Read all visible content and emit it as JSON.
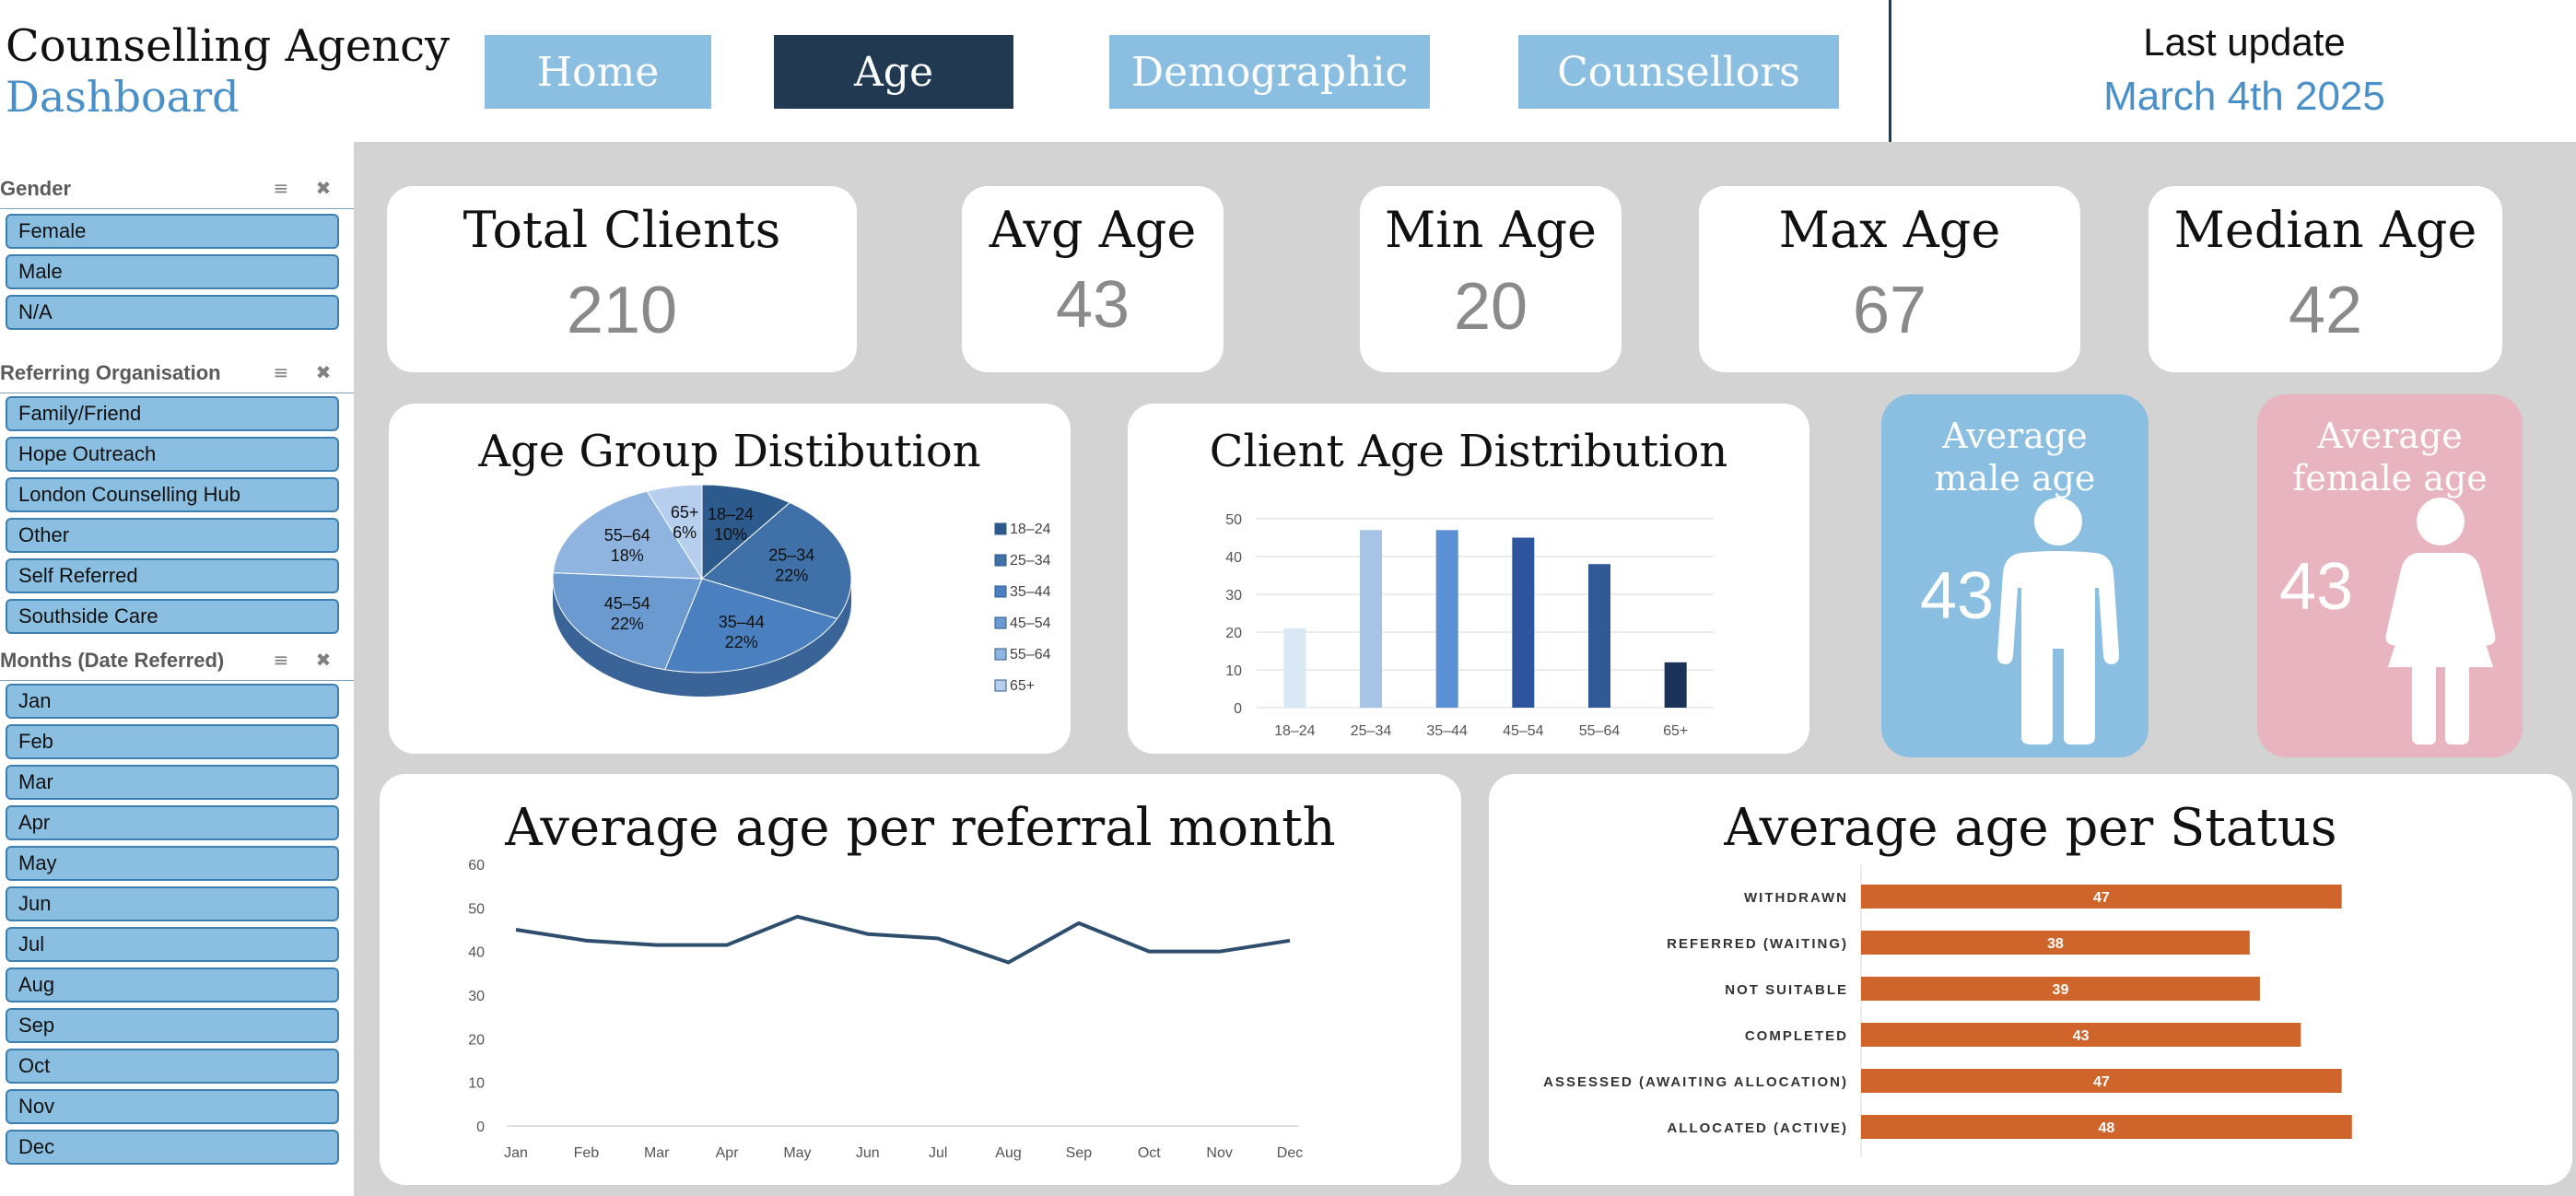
{
  "header": {
    "title_line1": "Counselling Agency",
    "title_line2": "Dashboard",
    "nav": [
      {
        "label": "Home",
        "active": false
      },
      {
        "label": "Age",
        "active": true
      },
      {
        "label": "Demographic",
        "active": false
      },
      {
        "label": "Counsellors",
        "active": false
      }
    ],
    "last_update_label": "Last update",
    "last_update_date": "March 4th 2025"
  },
  "slicers": {
    "gender": {
      "title": "Gender",
      "items": [
        "Female",
        "Male",
        "N/A"
      ]
    },
    "referring_organisation": {
      "title": "Referring Organisation",
      "items": [
        "Family/Friend",
        "Hope Outreach",
        "London Counselling Hub",
        "Other",
        "Self Referred",
        "Southside Care"
      ]
    },
    "months": {
      "title": "Months (Date Referred)",
      "items": [
        "Jan",
        "Feb",
        "Mar",
        "Apr",
        "May",
        "Jun",
        "Jul",
        "Aug",
        "Sep",
        "Oct",
        "Nov",
        "Dec"
      ]
    },
    "icons": {
      "multiselect": "multi-select-icon",
      "clear": "clear-filter-icon"
    }
  },
  "kpis": {
    "total_clients": {
      "label": "Total Clients",
      "value": "210"
    },
    "avg_age": {
      "label": "Avg Age",
      "value": "43"
    },
    "min_age": {
      "label": "Min Age",
      "value": "20"
    },
    "max_age": {
      "label": "Max Age",
      "value": "67"
    },
    "median_age": {
      "label": "Median Age",
      "value": "42"
    }
  },
  "gender_cards": {
    "male": {
      "label_line1": "Average",
      "label_line2": "male age",
      "value": "43",
      "color": "#8bbfe2",
      "icon": "male-person-icon"
    },
    "female": {
      "label_line1": "Average",
      "label_line2": "female age",
      "value": "43",
      "color": "#e8b4c0",
      "icon": "female-person-icon"
    }
  },
  "colors": {
    "dark_navy": "#213a52",
    "light_blue": "#8bbfe2",
    "accent_blue": "#4a90c8",
    "orange": "#d0652c",
    "line": "#2e4e6e"
  },
  "chart_data": [
    {
      "type": "pie",
      "title": "Age Group Distibution",
      "categories": [
        "18–24",
        "25–34",
        "35–44",
        "45–54",
        "55–64",
        "65+"
      ],
      "values": [
        10,
        22,
        22,
        22,
        18,
        6
      ],
      "labels": [
        "10%",
        "22%",
        "22%",
        "22%",
        "18%",
        "6%"
      ],
      "legend": "right",
      "colors": [
        "#2c5a8c",
        "#3f70a8",
        "#4a80bf",
        "#6a9ad0",
        "#8fb4df",
        "#b6cfee"
      ]
    },
    {
      "type": "bar",
      "title": "Client Age Distribution",
      "categories": [
        "18–24",
        "25–34",
        "35–44",
        "45–54",
        "55–64",
        "65+"
      ],
      "values": [
        21,
        47,
        47,
        45,
        38,
        12
      ],
      "ylim": [
        0,
        50
      ],
      "yticks": [
        "0",
        "10",
        "20",
        "30",
        "40",
        "50"
      ],
      "grid": true,
      "colors": [
        "#dae8f5",
        "#a7c3e6",
        "#5b8fd6",
        "#2d559e",
        "#2f5a96",
        "#1b3358"
      ]
    },
    {
      "type": "line",
      "title": "Average age per referral month",
      "categories": [
        "Jan",
        "Feb",
        "Mar",
        "Apr",
        "May",
        "Jun",
        "Jul",
        "Aug",
        "Sep",
        "Oct",
        "Nov",
        "Dec"
      ],
      "values": [
        45,
        42.5,
        41.5,
        41.5,
        48,
        44,
        43,
        37.5,
        46.5,
        40,
        40,
        42.5
      ],
      "ylim": [
        0,
        60
      ],
      "yticks": [
        "0",
        "10",
        "20",
        "30",
        "40",
        "50",
        "60"
      ],
      "grid": false
    },
    {
      "type": "bar",
      "orientation": "horizontal",
      "title": "Average age per Status",
      "categories": [
        "WITHDRAWN",
        "REFERRED (WAITING)",
        "NOT SUITABLE",
        "COMPLETED",
        "ASSESSED (AWAITING ALLOCATION)",
        "ALLOCATED (ACTIVE)"
      ],
      "values": [
        47,
        38,
        39,
        43,
        47,
        48
      ],
      "labels": [
        "47",
        "38",
        "39",
        "43",
        "47",
        "48"
      ],
      "xlim": [
        0,
        50
      ]
    }
  ]
}
